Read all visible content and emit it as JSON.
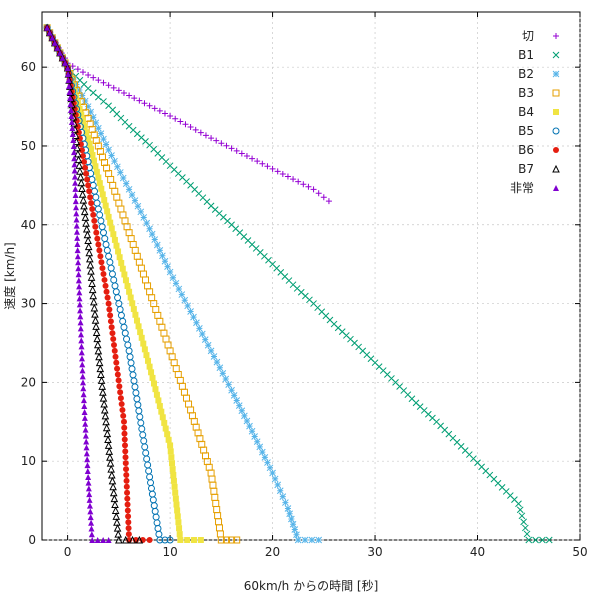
{
  "chart_data": {
    "type": "scatter",
    "xlabel": "60km/h からの時間 [秒]",
    "ylabel": "速度 [km/h]",
    "xlim": [
      -2.5,
      50
    ],
    "ylim": [
      0,
      67
    ],
    "xticks": [
      0,
      10,
      20,
      30,
      40,
      50
    ],
    "yticks": [
      0,
      10,
      20,
      30,
      40,
      50,
      60
    ],
    "grid": true,
    "legend_position": "top-right",
    "series": [
      {
        "name": "切",
        "marker": "plus",
        "color": "#9400d3",
        "x": [
          -2,
          0,
          2,
          4,
          6,
          8,
          10,
          12,
          14,
          16,
          18,
          20,
          22,
          24,
          25.5
        ],
        "y": [
          65,
          60.5,
          59,
          57.7,
          56.4,
          55.1,
          53.8,
          52.4,
          51,
          49.7,
          48.4,
          47.1,
          45.8,
          44.5,
          43
        ]
      },
      {
        "name": "B1",
        "marker": "x",
        "color": "#009e73",
        "x": [
          -2,
          0,
          2,
          4,
          6,
          8,
          10,
          12,
          14,
          16,
          18,
          20,
          22,
          24,
          26,
          28,
          30,
          32,
          34,
          36,
          38,
          40,
          42,
          44,
          45,
          47
        ],
        "y": [
          65,
          59.9,
          57.3,
          55.1,
          52.5,
          50.1,
          47.5,
          45,
          42.4,
          40,
          37.5,
          35,
          32.4,
          30,
          27.4,
          25,
          22.5,
          20,
          17.4,
          15,
          12.4,
          9.8,
          7.2,
          4.6,
          0,
          0
        ]
      },
      {
        "name": "B2",
        "marker": "asterisk",
        "color": "#56b4e9",
        "x": [
          -2,
          0,
          2,
          4,
          6,
          8,
          10,
          12,
          14,
          16,
          18,
          20,
          21.5,
          22.5,
          24.5
        ],
        "y": [
          65,
          59.9,
          55,
          49.5,
          44.5,
          39.5,
          34,
          29,
          24,
          19,
          13.8,
          8.5,
          4,
          0,
          0
        ]
      },
      {
        "name": "B3",
        "marker": "square-open",
        "color": "#e69f00",
        "x": [
          -2,
          0,
          2,
          4,
          6,
          8,
          10,
          12,
          14,
          15,
          16.5
        ],
        "y": [
          65,
          59.9,
          53.5,
          46.5,
          39,
          31.5,
          24,
          16.5,
          8.5,
          0,
          0
        ]
      },
      {
        "name": "B4",
        "marker": "square-filled",
        "color": "#f0e442",
        "x": [
          -2,
          0,
          2,
          4,
          6,
          8,
          10,
          11,
          13
        ],
        "y": [
          65,
          59.9,
          51,
          41,
          31.5,
          22,
          12,
          0,
          0
        ]
      },
      {
        "name": "B5",
        "marker": "circle-open",
        "color": "#0072b2",
        "x": [
          -2,
          0,
          2,
          4,
          6,
          8,
          9,
          10
        ],
        "y": [
          65,
          59.9,
          48,
          36,
          24,
          8,
          0,
          0
        ]
      },
      {
        "name": "B6",
        "marker": "circle-filled",
        "color": "#e51e10",
        "x": [
          -2,
          0,
          2,
          4,
          5.5,
          6,
          8
        ],
        "y": [
          65,
          59.9,
          45,
          30,
          15,
          0,
          0
        ]
      },
      {
        "name": "B7",
        "marker": "triangle-open",
        "color": "#000000",
        "x": [
          -2,
          0,
          1,
          2,
          3,
          4,
          5,
          7
        ],
        "y": [
          65,
          59.9,
          49,
          38,
          24,
          12,
          0,
          0
        ]
      },
      {
        "name": "非常",
        "marker": "triangle-filled",
        "color": "#8000d0",
        "x": [
          -2,
          0,
          0.6,
          1,
          1.5,
          2,
          2.4,
          4
        ],
        "y": [
          65,
          59.9,
          50,
          36,
          20,
          8,
          0,
          0
        ]
      }
    ]
  }
}
